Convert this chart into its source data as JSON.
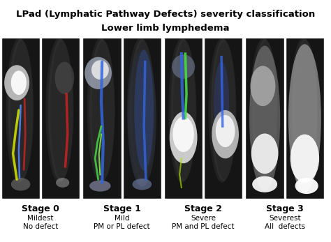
{
  "title": "LPad (Lymphatic Pathway Defects) severity classification",
  "subtitle": "Lower limb lymphedema",
  "stages": [
    "Stage 0",
    "Stage 1",
    "Stage 2",
    "Stage 3"
  ],
  "severity": [
    "Mildest",
    "Mild",
    "Severe",
    "Severest"
  ],
  "defects": [
    "No defect",
    "PM or PL defect",
    "PM and PL defect",
    "All  defects"
  ],
  "background_color": "#ffffff",
  "title_fontsize": 9.5,
  "subtitle_fontsize": 9.5,
  "stage_fontsize": 9,
  "severity_fontsize": 7.5,
  "defect_fontsize": 7.5
}
